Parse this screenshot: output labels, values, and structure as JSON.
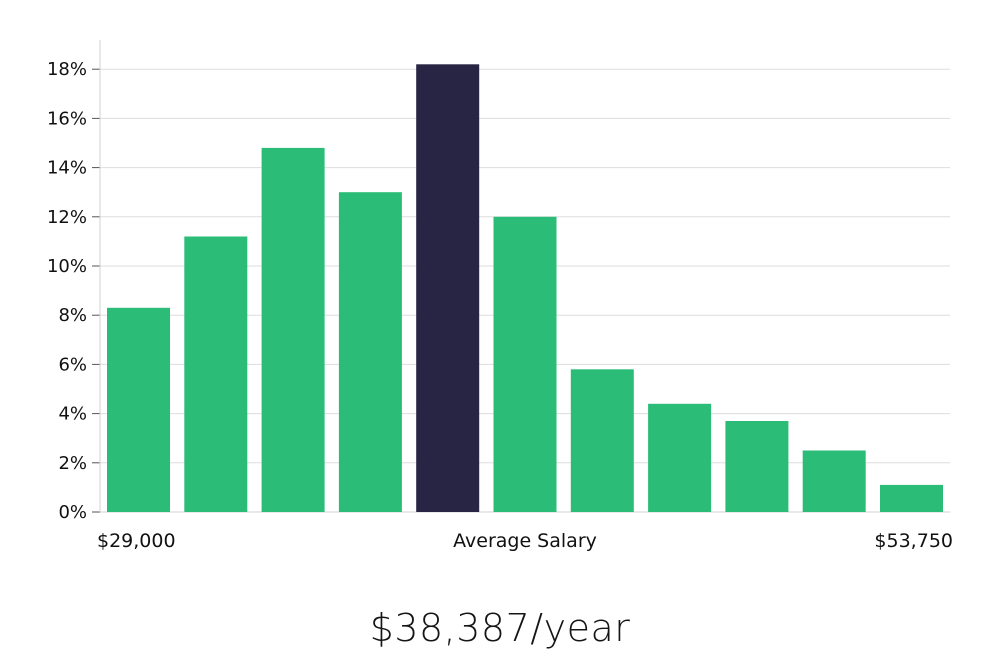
{
  "chart_data": {
    "type": "bar",
    "title": "",
    "xlabel": "",
    "ylabel": "",
    "ylim": [
      0,
      19
    ],
    "grid": true,
    "yticks": [
      0,
      2,
      4,
      6,
      8,
      10,
      12,
      14,
      16,
      18
    ],
    "ytick_labels": [
      "0%",
      "2%",
      "4%",
      "6%",
      "8%",
      "10%",
      "12%",
      "14%",
      "16%",
      "18%"
    ],
    "values": [
      8.3,
      11.2,
      14.8,
      13.0,
      18.2,
      12.0,
      5.8,
      4.4,
      3.7,
      2.5,
      1.1
    ],
    "highlight_index": 4,
    "x_left_label": "$29,000",
    "x_center_label": "Average Salary",
    "x_right_label": "$53,750",
    "colors": {
      "bar": "#2bbd78",
      "highlight": "#272444",
      "grid": "#dddddd",
      "axis": "#d0d0d0"
    }
  },
  "salary_text": "$38,387/year"
}
